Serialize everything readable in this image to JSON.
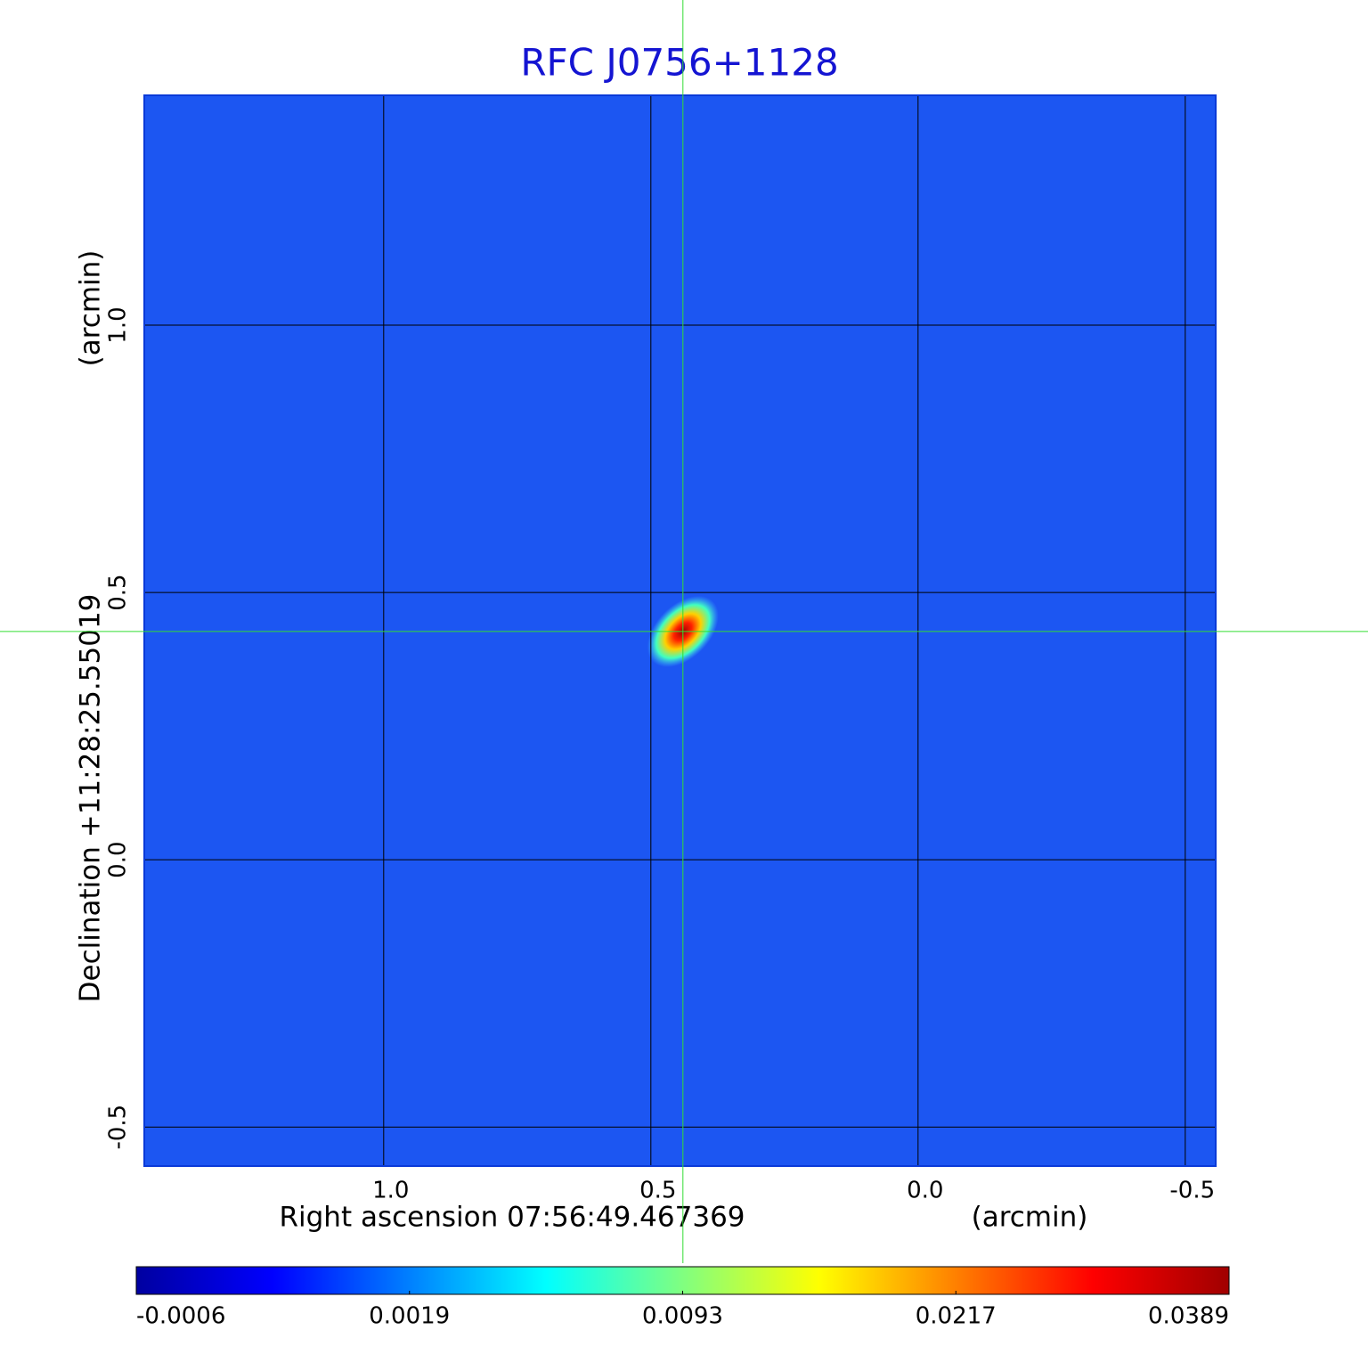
{
  "chart_data": {
    "type": "image",
    "title": "RFC J0756+1128",
    "x_label": "Right ascension  07:56:49.467369",
    "x_unit": "(arcmin)",
    "y_label": "Declination  +11:28:25.55019",
    "y_unit": "(arcmin)",
    "xlim": [
      1.448,
      -0.557
    ],
    "ylim": [
      -0.573,
      1.43
    ],
    "xticks": [
      {
        "value": 1,
        "label": "1.0"
      },
      0.5,
      {
        "value": 0,
        "label": "0.0"
      },
      -0.5
    ],
    "yticks": [
      {
        "value": 1,
        "label": "1.0"
      },
      0.5,
      {
        "value": 0,
        "label": "0.0"
      },
      -0.5
    ],
    "grid": true,
    "background_color": "#1c56f2",
    "crosshair": {
      "x": 0.44,
      "y": 0.427,
      "color": "#33dd33"
    },
    "peak": {
      "x": 0.44,
      "y": 0.427,
      "value": 0.0389
    },
    "colorbar": {
      "ticks": [
        -0.0006,
        0.0019,
        0.0093,
        0.0217,
        0.0389
      ],
      "colors": [
        "#0000a0",
        "#0000ff",
        "#0080ff",
        "#00ffff",
        "#80ff80",
        "#ffff00",
        "#ff8000",
        "#ff0000",
        "#a00000"
      ]
    }
  }
}
